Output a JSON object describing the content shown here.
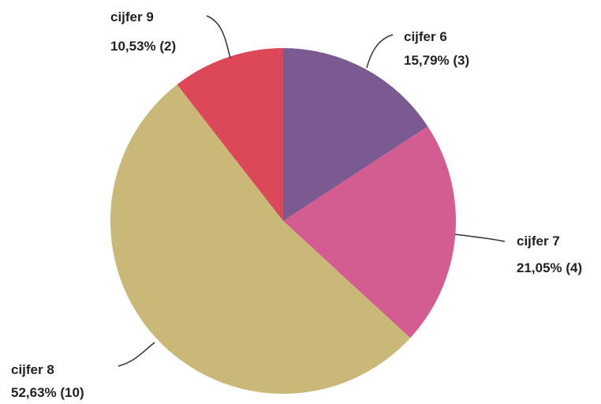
{
  "chart_data": {
    "type": "pie",
    "title": "",
    "slices": [
      {
        "label": "cijfer 6",
        "percent_text": "15,79% (3)",
        "value": 3,
        "percent": 15.79,
        "color": "#7a5a91"
      },
      {
        "label": "cijfer 7",
        "percent_text": "21,05% (4)",
        "value": 4,
        "percent": 21.05,
        "color": "#d35c91"
      },
      {
        "label": "cijfer 8",
        "percent_text": "52,63% (10)",
        "value": 10,
        "percent": 52.63,
        "color": "#c9b877"
      },
      {
        "label": "cijfer 9",
        "percent_text": "10,53% (2)",
        "value": 2,
        "percent": 10.53,
        "color": "#dc4858"
      }
    ],
    "start_angle": "12 o'clock",
    "direction": "clockwise",
    "legend": "none"
  }
}
